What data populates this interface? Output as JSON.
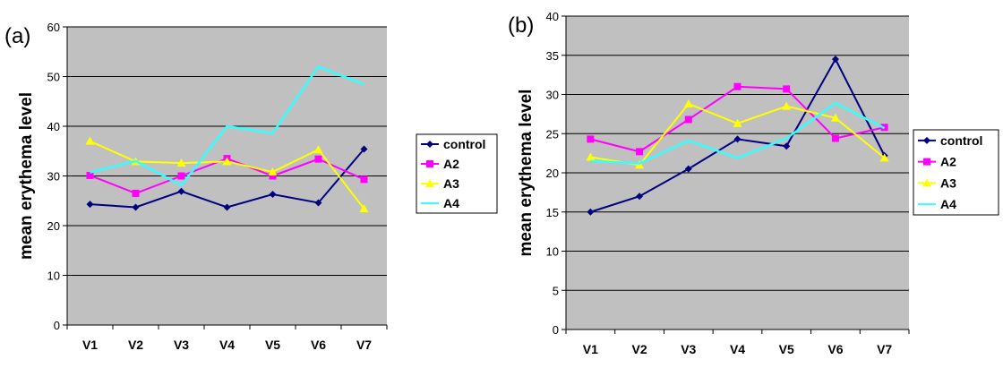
{
  "chart_data": [
    {
      "type": "line",
      "panel_label": "(a)",
      "ylabel": "mean erythema level",
      "xlabel": "",
      "categories": [
        "V1",
        "V2",
        "V3",
        "V4",
        "V5",
        "V6",
        "V7"
      ],
      "ylim": [
        0,
        60
      ],
      "yticks": [
        0,
        10,
        20,
        30,
        40,
        50,
        60
      ],
      "grid": true,
      "legend": "right",
      "series": [
        {
          "name": "control",
          "color": "#000080",
          "marker": "diamond",
          "values": [
            24.3,
            23.7,
            26.9,
            23.7,
            26.3,
            24.6,
            35.4
          ]
        },
        {
          "name": "A2",
          "color": "#ff00ff",
          "marker": "square",
          "values": [
            30.1,
            26.5,
            30.0,
            33.5,
            30.0,
            33.4,
            29.3
          ]
        },
        {
          "name": "A3",
          "color": "#ffff00",
          "marker": "triangle",
          "values": [
            37.0,
            32.9,
            32.6,
            32.9,
            30.8,
            35.3,
            23.4
          ]
        },
        {
          "name": "A4",
          "color": "#33ffff",
          "marker": "none",
          "values": [
            30.7,
            33.0,
            28.1,
            40.0,
            38.6,
            52.0,
            48.4
          ]
        }
      ]
    },
    {
      "type": "line",
      "panel_label": "(b)",
      "ylabel": "mean erythema level",
      "xlabel": "",
      "categories": [
        "V1",
        "V2",
        "V3",
        "V4",
        "V5",
        "V6",
        "V7"
      ],
      "ylim": [
        0,
        40
      ],
      "yticks": [
        0,
        5,
        10,
        15,
        20,
        25,
        30,
        35,
        40
      ],
      "grid": true,
      "legend": "right",
      "series": [
        {
          "name": "control",
          "color": "#000080",
          "marker": "diamond",
          "values": [
            15.0,
            17.0,
            20.5,
            24.3,
            23.4,
            34.5,
            22.2
          ]
        },
        {
          "name": "A2",
          "color": "#ff00ff",
          "marker": "square",
          "values": [
            24.3,
            22.7,
            26.8,
            31.0,
            30.7,
            24.4,
            25.8
          ]
        },
        {
          "name": "A3",
          "color": "#ffff00",
          "marker": "triangle",
          "values": [
            22.0,
            21.0,
            28.8,
            26.3,
            28.5,
            27.0,
            21.9
          ]
        },
        {
          "name": "A4",
          "color": "#33ffff",
          "marker": "none",
          "values": [
            21.5,
            21.2,
            24.1,
            21.9,
            24.4,
            28.9,
            25.7
          ]
        }
      ]
    }
  ]
}
